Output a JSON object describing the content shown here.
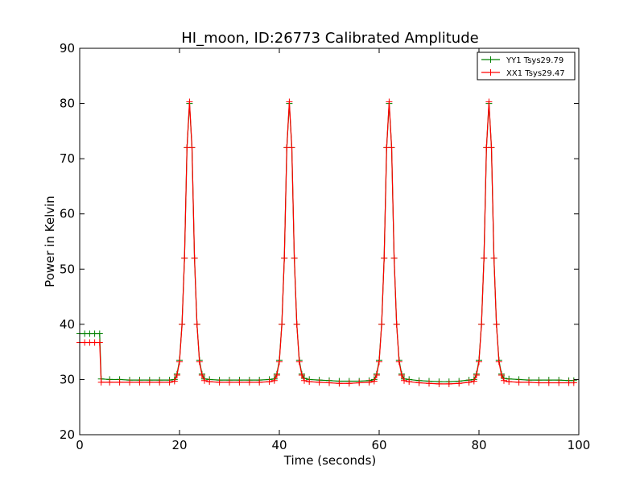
{
  "chart_data": {
    "type": "line",
    "title": "HI_moon, ID:26773 Calibrated Amplitude",
    "xlabel": "Time (seconds)",
    "ylabel": "Power in Kelvin",
    "xlim": [
      0,
      100
    ],
    "ylim": [
      20,
      90
    ],
    "xticks": [
      "0",
      "20",
      "40",
      "60",
      "80",
      "100"
    ],
    "yticks": [
      "20",
      "30",
      "40",
      "50",
      "60",
      "70",
      "80",
      "90"
    ],
    "grid": false,
    "legend_position": "top-right",
    "marker": "plus",
    "series": [
      {
        "name": "YY1 Tsys29.79",
        "color": "#008000",
        "points": [
          [
            0,
            38.3
          ],
          [
            1,
            38.3
          ],
          [
            2,
            38.3
          ],
          [
            3,
            38.3
          ],
          [
            4,
            38.3
          ],
          [
            4.3,
            30.1
          ],
          [
            6,
            30.0
          ],
          [
            8,
            30.0
          ],
          [
            10,
            29.9
          ],
          [
            12,
            29.9
          ],
          [
            14,
            29.9
          ],
          [
            16,
            29.9
          ],
          [
            18,
            29.9
          ],
          [
            19,
            30.0
          ],
          [
            19.5,
            31
          ],
          [
            20,
            33.5
          ],
          [
            20.5,
            40
          ],
          [
            21,
            52
          ],
          [
            21.5,
            72
          ],
          [
            22,
            80.0
          ],
          [
            22.5,
            72
          ],
          [
            23,
            52
          ],
          [
            23.5,
            40
          ],
          [
            24,
            33.5
          ],
          [
            24.5,
            31
          ],
          [
            25,
            30.1
          ],
          [
            26,
            30.0
          ],
          [
            28,
            29.9
          ],
          [
            30,
            29.9
          ],
          [
            32,
            29.9
          ],
          [
            34,
            29.9
          ],
          [
            36,
            29.9
          ],
          [
            38,
            30.0
          ],
          [
            39,
            30.1
          ],
          [
            39.5,
            31
          ],
          [
            40,
            33.5
          ],
          [
            40.5,
            40
          ],
          [
            41,
            52
          ],
          [
            41.5,
            72
          ],
          [
            42,
            80.0
          ],
          [
            42.5,
            72
          ],
          [
            43,
            52
          ],
          [
            43.5,
            40
          ],
          [
            44,
            33.5
          ],
          [
            44.5,
            31
          ],
          [
            45,
            30.2
          ],
          [
            46,
            30.0
          ],
          [
            48,
            29.9
          ],
          [
            50,
            29.8
          ],
          [
            52,
            29.7
          ],
          [
            54,
            29.7
          ],
          [
            56,
            29.7
          ],
          [
            58,
            29.8
          ],
          [
            59,
            30.0
          ],
          [
            59.5,
            31
          ],
          [
            60,
            33.5
          ],
          [
            60.5,
            40
          ],
          [
            61,
            52
          ],
          [
            61.5,
            72
          ],
          [
            62,
            80.0
          ],
          [
            62.5,
            72
          ],
          [
            63,
            52
          ],
          [
            63.5,
            40
          ],
          [
            64,
            33.5
          ],
          [
            64.5,
            31
          ],
          [
            65,
            30.1
          ],
          [
            66,
            30.0
          ],
          [
            68,
            29.8
          ],
          [
            70,
            29.7
          ],
          [
            72,
            29.6
          ],
          [
            74,
            29.6
          ],
          [
            76,
            29.7
          ],
          [
            78,
            29.9
          ],
          [
            79,
            30.0
          ],
          [
            79.5,
            31
          ],
          [
            80,
            33.5
          ],
          [
            80.5,
            40
          ],
          [
            81,
            52
          ],
          [
            81.5,
            72
          ],
          [
            82,
            80.0
          ],
          [
            82.5,
            72
          ],
          [
            83,
            52
          ],
          [
            83.5,
            40
          ],
          [
            84,
            33.5
          ],
          [
            84.5,
            31
          ],
          [
            85,
            30.2
          ],
          [
            86,
            30.1
          ],
          [
            88,
            30.0
          ],
          [
            90,
            29.9
          ],
          [
            92,
            29.9
          ],
          [
            94,
            29.9
          ],
          [
            96,
            29.9
          ],
          [
            98,
            29.8
          ],
          [
            99,
            29.8
          ]
        ]
      },
      {
        "name": "XX1 Tsys29.47",
        "color": "#ff0000",
        "points": [
          [
            0,
            36.7
          ],
          [
            1,
            36.7
          ],
          [
            2,
            36.7
          ],
          [
            3,
            36.7
          ],
          [
            4,
            36.7
          ],
          [
            4.3,
            29.5
          ],
          [
            6,
            29.5
          ],
          [
            8,
            29.5
          ],
          [
            10,
            29.5
          ],
          [
            12,
            29.5
          ],
          [
            14,
            29.5
          ],
          [
            16,
            29.5
          ],
          [
            18,
            29.5
          ],
          [
            19,
            29.7
          ],
          [
            19.5,
            30.8
          ],
          [
            20,
            33.2
          ],
          [
            20.5,
            40
          ],
          [
            21,
            52
          ],
          [
            21.5,
            72
          ],
          [
            22,
            80.3
          ],
          [
            22.5,
            72
          ],
          [
            23,
            52
          ],
          [
            23.5,
            40
          ],
          [
            24,
            33.2
          ],
          [
            24.5,
            30.8
          ],
          [
            25,
            29.8
          ],
          [
            26,
            29.6
          ],
          [
            28,
            29.5
          ],
          [
            30,
            29.5
          ],
          [
            32,
            29.5
          ],
          [
            34,
            29.5
          ],
          [
            36,
            29.5
          ],
          [
            38,
            29.6
          ],
          [
            39,
            29.8
          ],
          [
            39.5,
            30.8
          ],
          [
            40,
            33.2
          ],
          [
            40.5,
            40
          ],
          [
            41,
            52
          ],
          [
            41.5,
            72
          ],
          [
            42,
            80.3
          ],
          [
            42.5,
            72
          ],
          [
            43,
            52
          ],
          [
            43.5,
            40
          ],
          [
            44,
            33.2
          ],
          [
            44.5,
            30.8
          ],
          [
            45,
            29.8
          ],
          [
            46,
            29.6
          ],
          [
            48,
            29.5
          ],
          [
            50,
            29.4
          ],
          [
            52,
            29.3
          ],
          [
            54,
            29.3
          ],
          [
            56,
            29.4
          ],
          [
            58,
            29.5
          ],
          [
            59,
            29.7
          ],
          [
            59.5,
            30.8
          ],
          [
            60,
            33.2
          ],
          [
            60.5,
            40
          ],
          [
            61,
            52
          ],
          [
            61.5,
            72
          ],
          [
            62,
            80.3
          ],
          [
            62.5,
            72
          ],
          [
            63,
            52
          ],
          [
            63.5,
            40
          ],
          [
            64,
            33.2
          ],
          [
            64.5,
            30.8
          ],
          [
            65,
            29.8
          ],
          [
            66,
            29.6
          ],
          [
            68,
            29.4
          ],
          [
            70,
            29.3
          ],
          [
            72,
            29.2
          ],
          [
            74,
            29.2
          ],
          [
            76,
            29.3
          ],
          [
            78,
            29.5
          ],
          [
            79,
            29.7
          ],
          [
            79.5,
            30.8
          ],
          [
            80,
            33.2
          ],
          [
            80.5,
            40
          ],
          [
            81,
            52
          ],
          [
            81.5,
            72
          ],
          [
            82,
            80.3
          ],
          [
            82.5,
            72
          ],
          [
            83,
            52
          ],
          [
            83.5,
            40
          ],
          [
            84,
            33.2
          ],
          [
            84.5,
            30.8
          ],
          [
            85,
            29.8
          ],
          [
            86,
            29.6
          ],
          [
            88,
            29.5
          ],
          [
            90,
            29.5
          ],
          [
            92,
            29.4
          ],
          [
            94,
            29.4
          ],
          [
            96,
            29.4
          ],
          [
            98,
            29.4
          ],
          [
            99,
            29.4
          ]
        ]
      }
    ]
  }
}
